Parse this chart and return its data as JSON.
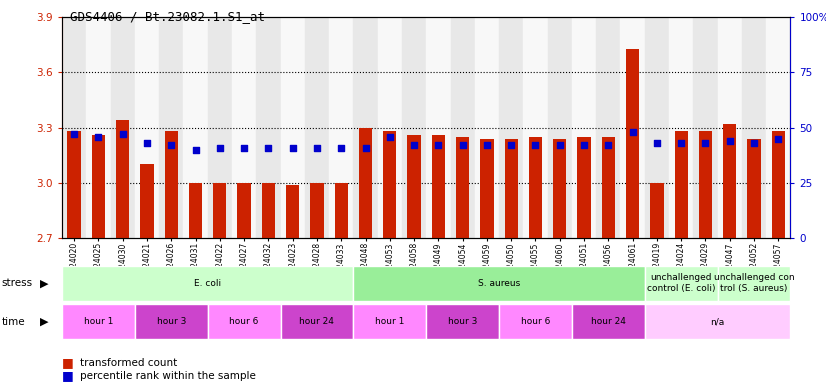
{
  "title": "GDS4406 / Bt.23082.1.S1_at",
  "samples": [
    "GSM624020",
    "GSM624025",
    "GSM624030",
    "GSM624021",
    "GSM624026",
    "GSM624031",
    "GSM624022",
    "GSM624027",
    "GSM624032",
    "GSM624023",
    "GSM624028",
    "GSM624033",
    "GSM624048",
    "GSM624053",
    "GSM624058",
    "GSM624049",
    "GSM624054",
    "GSM624059",
    "GSM624050",
    "GSM624055",
    "GSM624060",
    "GSM624051",
    "GSM624056",
    "GSM624061",
    "GSM624019",
    "GSM624024",
    "GSM624029",
    "GSM624047",
    "GSM624052",
    "GSM624057"
  ],
  "red_values": [
    3.28,
    3.26,
    3.34,
    3.1,
    3.28,
    3.0,
    3.0,
    3.0,
    3.0,
    2.99,
    3.0,
    3.0,
    3.3,
    3.28,
    3.26,
    3.26,
    3.25,
    3.24,
    3.24,
    3.25,
    3.24,
    3.25,
    3.25,
    3.73,
    3.0,
    3.28,
    3.28,
    3.32,
    3.24,
    3.28
  ],
  "blue_values": [
    47,
    46,
    47,
    43,
    42,
    40,
    41,
    41,
    41,
    41,
    41,
    41,
    41,
    46,
    42,
    42,
    42,
    42,
    42,
    42,
    42,
    42,
    42,
    48,
    43,
    43,
    43,
    44,
    43,
    45
  ],
  "y_min": 2.7,
  "y_max": 3.9,
  "y_ticks": [
    2.7,
    3.0,
    3.3,
    3.6,
    3.9
  ],
  "y_right_ticks": [
    0,
    25,
    50,
    75,
    100
  ],
  "y_right_labels": [
    "0",
    "25",
    "50",
    "75",
    "100%"
  ],
  "dotted_lines": [
    3.0,
    3.3,
    3.6
  ],
  "bar_color": "#cc2200",
  "dot_color": "#0000cc",
  "stress_groups": [
    {
      "label": "E. coli",
      "start": 0,
      "end": 12,
      "color": "#ccffcc"
    },
    {
      "label": "S. aureus",
      "start": 12,
      "end": 24,
      "color": "#99ee99"
    },
    {
      "label": "unchallenged\ncontrol (E. coli)",
      "start": 24,
      "end": 27,
      "color": "#ccffcc"
    },
    {
      "label": "unchallenged con\ntrol (S. aureus)",
      "start": 27,
      "end": 30,
      "color": "#ccffcc"
    }
  ],
  "time_groups": [
    {
      "label": "hour 1",
      "start": 0,
      "end": 3,
      "color": "#ff88ff"
    },
    {
      "label": "hour 3",
      "start": 3,
      "end": 6,
      "color": "#cc44cc"
    },
    {
      "label": "hour 6",
      "start": 6,
      "end": 9,
      "color": "#ff88ff"
    },
    {
      "label": "hour 24",
      "start": 9,
      "end": 12,
      "color": "#cc44cc"
    },
    {
      "label": "hour 1",
      "start": 12,
      "end": 15,
      "color": "#ff88ff"
    },
    {
      "label": "hour 3",
      "start": 15,
      "end": 18,
      "color": "#cc44cc"
    },
    {
      "label": "hour 6",
      "start": 18,
      "end": 21,
      "color": "#ff88ff"
    },
    {
      "label": "hour 24",
      "start": 21,
      "end": 24,
      "color": "#cc44cc"
    },
    {
      "label": "n/a",
      "start": 24,
      "end": 30,
      "color": "#ffccff"
    }
  ],
  "col_bg_even": "#e8e8e8",
  "col_bg_odd": "#f8f8f8"
}
